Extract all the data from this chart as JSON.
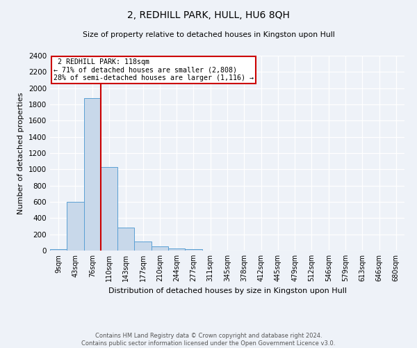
{
  "title": "2, REDHILL PARK, HULL, HU6 8QH",
  "subtitle": "Size of property relative to detached houses in Kingston upon Hull",
  "xlabel": "Distribution of detached houses by size in Kingston upon Hull",
  "ylabel": "Number of detached properties",
  "footnote1": "Contains HM Land Registry data © Crown copyright and database right 2024.",
  "footnote2": "Contains public sector information licensed under the Open Government Licence v3.0.",
  "bin_labels": [
    "9sqm",
    "43sqm",
    "76sqm",
    "110sqm",
    "143sqm",
    "177sqm",
    "210sqm",
    "244sqm",
    "277sqm",
    "311sqm",
    "345sqm",
    "378sqm",
    "412sqm",
    "445sqm",
    "479sqm",
    "512sqm",
    "546sqm",
    "579sqm",
    "613sqm",
    "646sqm",
    "680sqm"
  ],
  "bar_heights": [
    20,
    600,
    1880,
    1030,
    285,
    110,
    48,
    28,
    20,
    0,
    0,
    0,
    0,
    0,
    0,
    0,
    0,
    0,
    0,
    0,
    0
  ],
  "bar_color": "#c8d8ea",
  "bar_edge_color": "#5a9fd4",
  "property_size": 118,
  "property_label": "2 REDHILL PARK: 118sqm",
  "pct_smaller": 71,
  "n_smaller": 2808,
  "pct_larger_semi": 28,
  "n_larger_semi": 1116,
  "vline_color": "#cc0000",
  "annotation_box_color": "#cc0000",
  "ylim": [
    0,
    2400
  ],
  "yticks": [
    0,
    200,
    400,
    600,
    800,
    1000,
    1200,
    1400,
    1600,
    1800,
    2000,
    2200,
    2400
  ],
  "bg_color": "#eef2f8",
  "plot_bg_color": "#eef2f8",
  "grid_color": "#ffffff"
}
